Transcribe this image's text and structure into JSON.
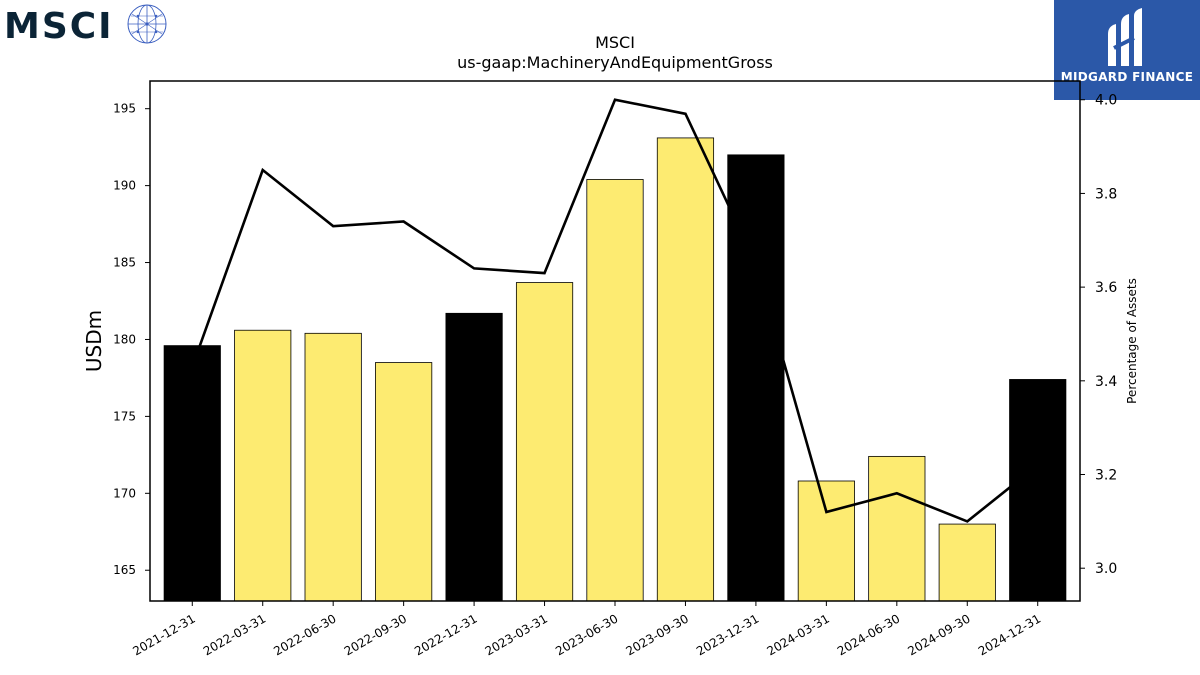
{
  "branding": {
    "left_logo_text": "MSCI",
    "left_logo_icon": "globe-grid-icon",
    "right_logo_text": "MIDGARD FINANCE",
    "right_logo_icon": "midgard-mark-icon",
    "right_logo_bg": "#2b58a8"
  },
  "chart_data": {
    "type": "bar",
    "title": "MSCI",
    "subtitle": "us-gaap:MachineryAndEquipmentGross",
    "ylabel": "USDm",
    "y2label": "Percentage of Assets",
    "ylim": [
      163,
      196.8
    ],
    "y2lim": [
      2.93,
      4.04
    ],
    "yticks": [
      165,
      170,
      175,
      180,
      185,
      190,
      195
    ],
    "y2ticks": [
      "3.0",
      "3.2",
      "3.4",
      "3.6",
      "3.8",
      "4.0"
    ],
    "categories": [
      "2021-12-31",
      "2022-03-31",
      "2022-06-30",
      "2022-09-30",
      "2022-12-31",
      "2023-03-31",
      "2023-06-30",
      "2023-09-30",
      "2023-12-31",
      "2024-03-31",
      "2024-06-30",
      "2024-09-30",
      "2024-12-31"
    ],
    "series": [
      {
        "type": "bar",
        "axis": "left",
        "values": [
          179.6,
          180.6,
          180.4,
          178.5,
          181.7,
          183.7,
          190.4,
          193.1,
          192.0,
          170.8,
          172.4,
          168.0,
          177.4
        ],
        "colors": [
          "#000000",
          "#fdeb71",
          "#fdeb71",
          "#fdeb71",
          "#000000",
          "#fdeb71",
          "#fdeb71",
          "#fdeb71",
          "#000000",
          "#fdeb71",
          "#fdeb71",
          "#fdeb71",
          "#000000"
        ]
      },
      {
        "type": "line",
        "axis": "right",
        "values": [
          3.43,
          3.85,
          3.73,
          3.74,
          3.64,
          3.63,
          4.0,
          3.97,
          3.65,
          3.12,
          3.16,
          3.1,
          3.22
        ],
        "color": "#000000"
      }
    ],
    "grid": false,
    "legend": "none"
  }
}
